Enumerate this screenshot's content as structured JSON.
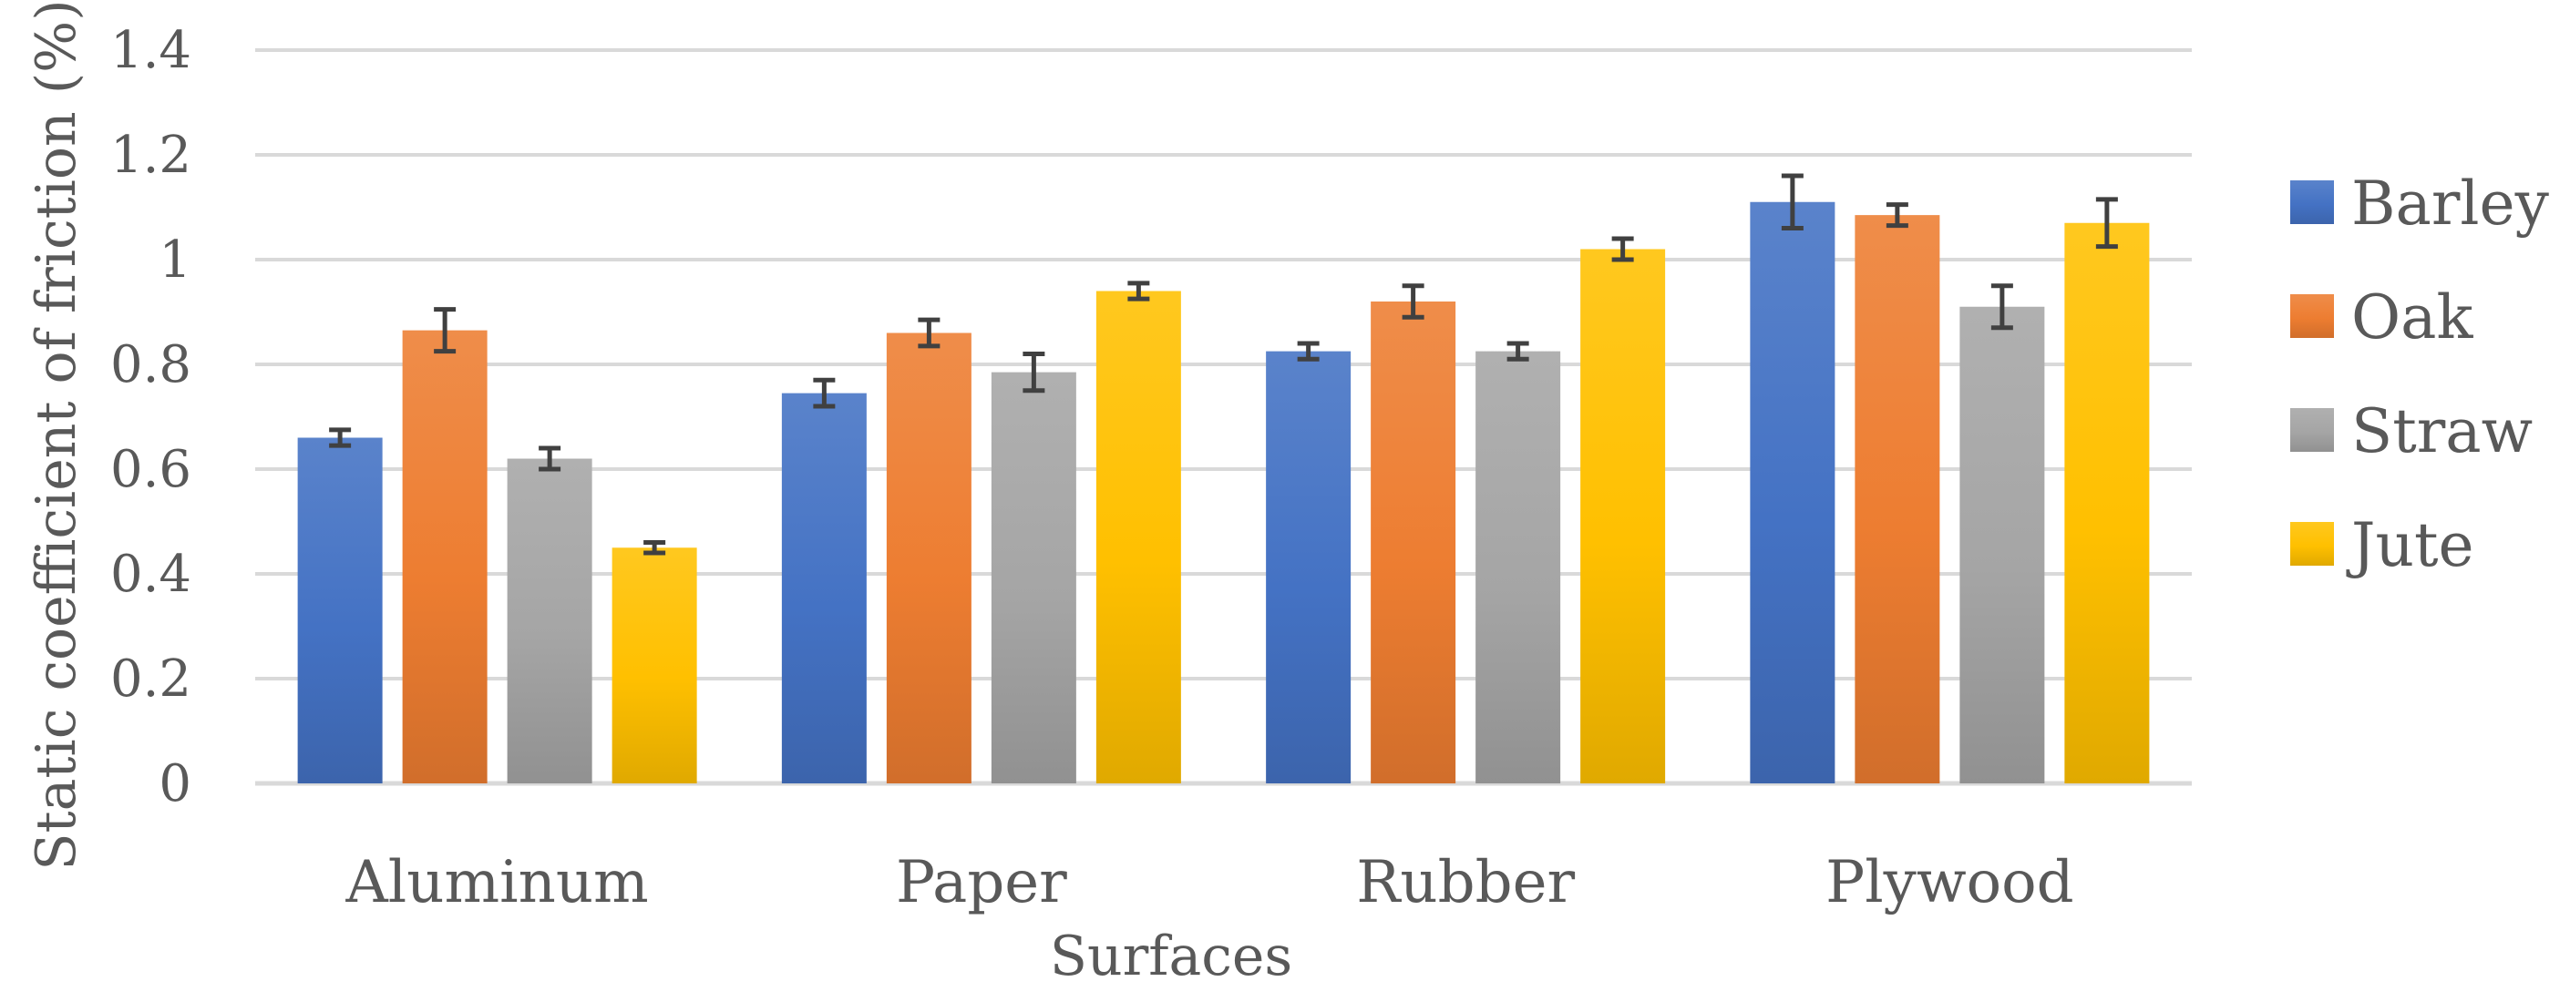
{
  "chart_data": {
    "type": "bar",
    "title": "",
    "xlabel": "Surfaces",
    "ylabel": "Static coefficient of friction (%)",
    "categories": [
      "Aluminum",
      "Paper",
      "Rubber",
      "Plywood"
    ],
    "ylim": [
      0,
      1.4
    ],
    "yticks": [
      0,
      0.2,
      0.4,
      0.6,
      0.8,
      1,
      1.2,
      1.4
    ],
    "ytick_labels": [
      "0",
      "0.2",
      "0.4",
      "0.6",
      "0.8",
      "1",
      "1.2",
      "1.4"
    ],
    "grid": true,
    "legend_position": "right",
    "error_bars": true,
    "series": [
      {
        "name": "Barley",
        "color": "#4472c4",
        "values": [
          0.66,
          0.745,
          0.825,
          1.11
        ],
        "errors": [
          0.015,
          0.025,
          0.015,
          0.05
        ]
      },
      {
        "name": "Oak",
        "color": "#ed7d31",
        "values": [
          0.865,
          0.86,
          0.92,
          1.085
        ],
        "errors": [
          0.04,
          0.025,
          0.03,
          0.02
        ]
      },
      {
        "name": "Straw",
        "color": "#a5a5a5",
        "values": [
          0.62,
          0.785,
          0.825,
          0.91
        ],
        "errors": [
          0.02,
          0.035,
          0.015,
          0.04
        ]
      },
      {
        "name": "Jute",
        "color": "#ffc000",
        "values": [
          0.45,
          0.94,
          1.02,
          1.07
        ],
        "errors": [
          0.01,
          0.015,
          0.02,
          0.045
        ]
      }
    ]
  }
}
